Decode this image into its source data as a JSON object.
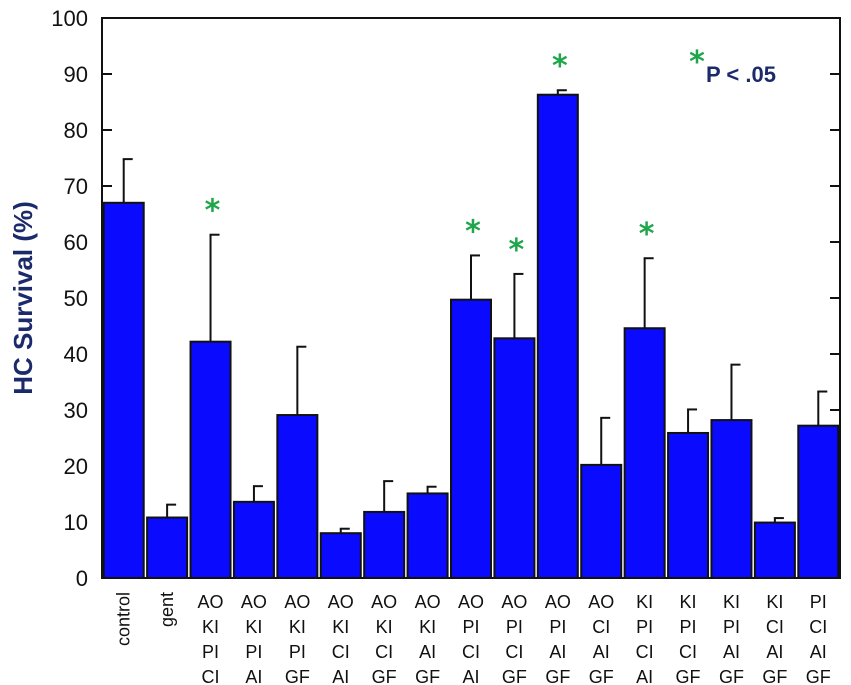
{
  "chart_data": {
    "type": "bar",
    "ylabel": "HC Survival (%)",
    "ylim": [
      0,
      100
    ],
    "yticks": [
      0,
      10,
      20,
      30,
      40,
      50,
      60,
      70,
      80,
      90,
      100
    ],
    "grid": false,
    "categories": [
      [
        "control"
      ],
      [
        "gent"
      ],
      [
        "AO",
        "KI",
        "PI",
        "CI"
      ],
      [
        "AO",
        "KI",
        "PI",
        "AI"
      ],
      [
        "AO",
        "KI",
        "PI",
        "GF"
      ],
      [
        "AO",
        "KI",
        "CI",
        "AI"
      ],
      [
        "AO",
        "KI",
        "CI",
        "GF"
      ],
      [
        "AO",
        "KI",
        "AI",
        "GF"
      ],
      [
        "AO",
        "PI",
        "CI",
        "AI"
      ],
      [
        "AO",
        "PI",
        "CI",
        "GF"
      ],
      [
        "AO",
        "PI",
        "AI",
        "GF"
      ],
      [
        "AO",
        "CI",
        "AI",
        "GF"
      ],
      [
        "KI",
        "PI",
        "CI",
        "AI"
      ],
      [
        "KI",
        "PI",
        "CI",
        "GF"
      ],
      [
        "KI",
        "PI",
        "AI",
        "GF"
      ],
      [
        "KI",
        "CI",
        "AI",
        "GF"
      ],
      [
        "PI",
        "CI",
        "AI",
        "GF"
      ]
    ],
    "values": [
      67,
      10.8,
      42.2,
      13.6,
      29.1,
      8,
      11.8,
      15.1,
      49.7,
      42.8,
      86.3,
      20.2,
      44.6,
      25.9,
      28.2,
      9.9,
      27.2
    ],
    "error_upper": [
      74.8,
      13.1,
      61.3,
      16.4,
      41.3,
      8.8,
      17.3,
      16.3,
      57.6,
      54.3,
      87.1,
      28.6,
      57.1,
      30.1,
      38.1,
      10.7,
      33.3
    ],
    "significant": [
      false,
      false,
      true,
      false,
      false,
      false,
      false,
      false,
      true,
      true,
      true,
      false,
      true,
      false,
      false,
      false,
      false
    ],
    "bar_color": "#0a0aff",
    "star_color": "#1fa64a",
    "legend": {
      "symbol": "*",
      "text": "P < .05",
      "placement": "top-right"
    }
  }
}
